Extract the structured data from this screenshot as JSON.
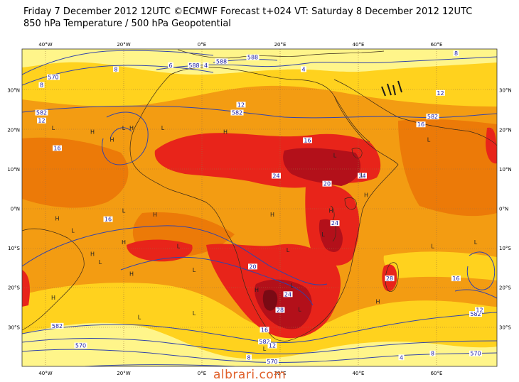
{
  "title_line1": "Friday 7 December 2012 12UTC ©ECMWF Forecast t+024 VT: Saturday 8 December 2012 12UTC",
  "title_line2": "850 hPa Temperature / 500 hPa Geopotential",
  "watermark": "albrari.com",
  "colors": {
    "lt": "#fff58a",
    "ylw": "#ffd21e",
    "org": "#f39c12",
    "dor": "#ec7a08",
    "red": "#e8241a",
    "dred": "#b3101a",
    "mar": "#7a0a14",
    "contour": "#3344aa",
    "land": "#3a2a1a",
    "grid": "#a07040"
  },
  "x_ticks": [
    {
      "label": "40°W",
      "lon": -40
    },
    {
      "label": "20°W",
      "lon": -20
    },
    {
      "label": "0°E",
      "lon": 0
    },
    {
      "label": "20°E",
      "lon": 20
    },
    {
      "label": "40°E",
      "lon": 40
    },
    {
      "label": "60°E",
      "lon": 60
    }
  ],
  "y_ticks": [
    {
      "label": "30°N",
      "lat": 30
    },
    {
      "label": "20°N",
      "lat": 20
    },
    {
      "label": "10°N",
      "lat": 10
    },
    {
      "label": "0°N",
      "lat": 0
    },
    {
      "label": "10°S",
      "lat": -10
    },
    {
      "label": "20°S",
      "lat": -20
    },
    {
      "label": "30°S",
      "lat": -30
    }
  ],
  "contour_labels": [
    {
      "text": "570",
      "lon": -38,
      "lat": 33
    },
    {
      "text": "8",
      "lon": -41,
      "lat": 31
    },
    {
      "text": "582",
      "lon": -41,
      "lat": 24
    },
    {
      "text": "12",
      "lon": -41,
      "lat": 22
    },
    {
      "text": "8",
      "lon": -22,
      "lat": 35
    },
    {
      "text": "6",
      "lon": -8,
      "lat": 36
    },
    {
      "text": "588",
      "lon": -2,
      "lat": 36
    },
    {
      "text": "4",
      "lon": 1,
      "lat": 36
    },
    {
      "text": "588",
      "lon": 5,
      "lat": 37
    },
    {
      "text": "588",
      "lon": 13,
      "lat": 38
    },
    {
      "text": "4",
      "lon": 26,
      "lat": 35
    },
    {
      "text": "8",
      "lon": 65,
      "lat": 39
    },
    {
      "text": "12",
      "lon": 61,
      "lat": 29
    },
    {
      "text": "582",
      "lon": 59,
      "lat": 23
    },
    {
      "text": "16",
      "lon": 56,
      "lat": 21
    },
    {
      "text": "12",
      "lon": 10,
      "lat": 26
    },
    {
      "text": "582",
      "lon": 9,
      "lat": 24
    },
    {
      "text": "16",
      "lon": -37,
      "lat": 15
    },
    {
      "text": "16",
      "lon": 27,
      "lat": 17
    },
    {
      "text": "24",
      "lon": 19,
      "lat": 8
    },
    {
      "text": "24",
      "lon": 41,
      "lat": 8
    },
    {
      "text": "20",
      "lon": 32,
      "lat": 6
    },
    {
      "text": "24",
      "lon": 34,
      "lat": -4
    },
    {
      "text": "16",
      "lon": -24,
      "lat": -3
    },
    {
      "text": "20",
      "lon": 13,
      "lat": -15
    },
    {
      "text": "24",
      "lon": 22,
      "lat": -22
    },
    {
      "text": "28",
      "lon": 20,
      "lat": -26
    },
    {
      "text": "28",
      "lon": 48,
      "lat": -18
    },
    {
      "text": "16",
      "lon": 65,
      "lat": -18
    },
    {
      "text": "582",
      "lon": -37,
      "lat": -30
    },
    {
      "text": "570",
      "lon": -31,
      "lat": -35
    },
    {
      "text": "16",
      "lon": 16,
      "lat": -31
    },
    {
      "text": "582",
      "lon": 16,
      "lat": -34
    },
    {
      "text": "12",
      "lon": 18,
      "lat": -35
    },
    {
      "text": "8",
      "lon": 12,
      "lat": -38
    },
    {
      "text": "570",
      "lon": 18,
      "lat": -39
    },
    {
      "text": "4",
      "lon": 51,
      "lat": -38
    },
    {
      "text": "8",
      "lon": 59,
      "lat": -37
    },
    {
      "text": "570",
      "lon": 70,
      "lat": -37
    },
    {
      "text": "582",
      "lon": 70,
      "lat": -27
    },
    {
      "text": "12",
      "lon": 71,
      "lat": -26
    }
  ],
  "hl_markers": [
    {
      "text": "L",
      "lon": -20,
      "lat": 20
    },
    {
      "text": "H",
      "lon": -18,
      "lat": 20
    },
    {
      "text": "H",
      "lon": -28,
      "lat": 19
    },
    {
      "text": "L",
      "lon": -10,
      "lat": 20
    },
    {
      "text": "L",
      "lon": -38,
      "lat": 20
    },
    {
      "text": "H",
      "lon": -23,
      "lat": 17
    },
    {
      "text": "H",
      "lon": -37,
      "lat": -3
    },
    {
      "text": "H",
      "lon": -12,
      "lat": -2
    },
    {
      "text": "L",
      "lon": -20,
      "lat": -1
    },
    {
      "text": "L",
      "lon": -33,
      "lat": -6
    },
    {
      "text": "H",
      "lon": -20,
      "lat": -9
    },
    {
      "text": "H",
      "lon": -28,
      "lat": -12
    },
    {
      "text": "L",
      "lon": -26,
      "lat": -14
    },
    {
      "text": "L",
      "lon": -6,
      "lat": -10
    },
    {
      "text": "L",
      "lon": -2,
      "lat": -16
    },
    {
      "text": "H",
      "lon": -38,
      "lat": -23
    },
    {
      "text": "H",
      "lon": 6,
      "lat": 19
    },
    {
      "text": "L",
      "lon": 34,
      "lat": 13
    },
    {
      "text": "L",
      "lon": 41,
      "lat": 8
    },
    {
      "text": "H",
      "lon": 42,
      "lat": 3
    },
    {
      "text": "L",
      "lon": 58,
      "lat": 17
    },
    {
      "text": "H",
      "lon": 33,
      "lat": -1
    },
    {
      "text": "L",
      "lon": 31,
      "lat": -7
    },
    {
      "text": "L",
      "lon": 22,
      "lat": -11
    },
    {
      "text": "H",
      "lon": 18,
      "lat": -2
    },
    {
      "text": "H",
      "lon": 14,
      "lat": -21
    },
    {
      "text": "L",
      "lon": 23,
      "lat": -20
    },
    {
      "text": "L",
      "lon": 25,
      "lat": -26
    },
    {
      "text": "L",
      "lon": 59,
      "lat": -10
    },
    {
      "text": "L",
      "lon": 70,
      "lat": -9
    },
    {
      "text": "L",
      "lon": -16,
      "lat": -28
    },
    {
      "text": "L",
      "lon": -2,
      "lat": -27
    },
    {
      "text": "H",
      "lon": 45,
      "lat": -24
    },
    {
      "text": "H",
      "lon": -18,
      "lat": -17
    },
    {
      "text": "L",
      "lon": 16,
      "lat": -36
    }
  ]
}
